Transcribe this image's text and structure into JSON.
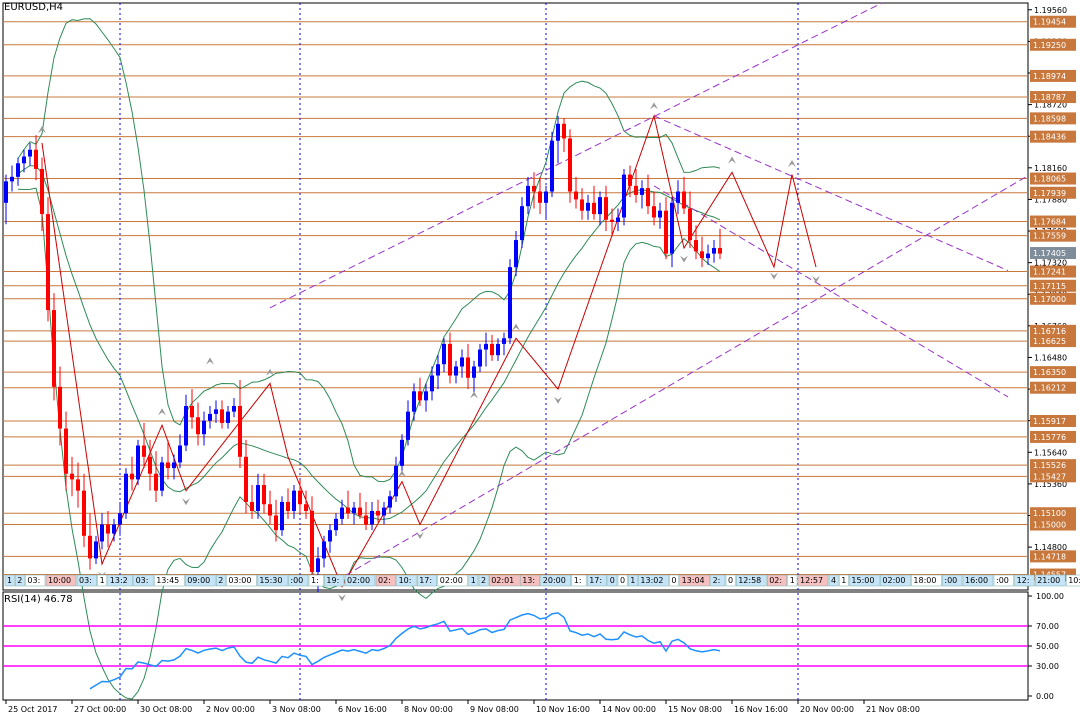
{
  "chart_data": {
    "type": "candlestick",
    "title": "EURUSD,H4",
    "ylim": [
      1.1442,
      1.1962
    ],
    "price_ticks": [
      "1.19560",
      "1.19280",
      "1.19000",
      "1.18720",
      "1.18440",
      "1.18160",
      "1.17880",
      "1.17600",
      "1.17320",
      "1.17040",
      "1.16760",
      "1.16480",
      "1.16200",
      "1.15920",
      "1.15640",
      "1.15360",
      "1.15080",
      "1.14800",
      "1.14520"
    ],
    "levels": [
      1.19454,
      1.1925,
      1.18974,
      1.18787,
      1.18598,
      1.18436,
      1.18065,
      1.17939,
      1.17684,
      1.17559,
      1.17241,
      1.17115,
      1.17,
      1.16716,
      1.16625,
      1.1635,
      1.16212,
      1.15917,
      1.15776,
      1.15526,
      1.15427,
      1.151,
      1.15,
      1.14718,
      1.14557
    ],
    "level_labels": [
      "1.19454",
      "1.19250",
      "1.18974",
      "1.18787",
      "1.18598",
      "1.18436",
      "1.18065",
      "1.17939",
      "1.17684",
      "1.17559",
      "1.17241",
      "1.17115",
      "1.17000",
      "1.16716",
      "1.16625",
      "1.16350",
      "1.16212",
      "1.15917",
      "1.15776",
      "1.15526",
      "1.15427",
      "1.15100",
      "1.15000",
      "1.14718",
      "1.14557"
    ],
    "current_price": "1.17405",
    "level_color": "#c8783c",
    "bull_color": "#0000ff",
    "bear_color": "#ff0000",
    "candles": [
      [
        1.1785,
        1.181,
        1.1766,
        1.1804
      ],
      [
        1.1804,
        1.1818,
        1.1795,
        1.1808
      ],
      [
        1.1808,
        1.1825,
        1.18,
        1.182
      ],
      [
        1.182,
        1.1832,
        1.1812,
        1.1826
      ],
      [
        1.1826,
        1.1838,
        1.1818,
        1.1832
      ],
      [
        1.1832,
        1.1845,
        1.1805,
        1.1815
      ],
      [
        1.1815,
        1.1825,
        1.176,
        1.1775
      ],
      [
        1.1775,
        1.179,
        1.168,
        1.169
      ],
      [
        1.169,
        1.1705,
        1.161,
        1.1622
      ],
      [
        1.1622,
        1.164,
        1.157,
        1.1585
      ],
      [
        1.1585,
        1.16,
        1.153,
        1.1545
      ],
      [
        1.1545,
        1.156,
        1.1525,
        1.154
      ],
      [
        1.154,
        1.1555,
        1.1515,
        1.153
      ],
      [
        1.153,
        1.1545,
        1.148,
        1.149
      ],
      [
        1.149,
        1.151,
        1.146,
        1.147
      ],
      [
        1.147,
        1.149,
        1.1465,
        1.1485
      ],
      [
        1.1485,
        1.151,
        1.1478,
        1.15
      ],
      [
        1.15,
        1.1512,
        1.148,
        1.1492
      ],
      [
        1.1492,
        1.1505,
        1.1485,
        1.15
      ],
      [
        1.15,
        1.152,
        1.149,
        1.151
      ],
      [
        1.151,
        1.155,
        1.1505,
        1.1545
      ],
      [
        1.1545,
        1.156,
        1.153,
        1.154
      ],
      [
        1.154,
        1.1575,
        1.1535,
        1.157
      ],
      [
        1.157,
        1.159,
        1.155,
        1.156
      ],
      [
        1.156,
        1.1575,
        1.153,
        1.1545
      ],
      [
        1.1545,
        1.1565,
        1.152,
        1.153
      ],
      [
        1.153,
        1.156,
        1.1525,
        1.1555
      ],
      [
        1.1555,
        1.1575,
        1.154,
        1.155
      ],
      [
        1.155,
        1.1562,
        1.154,
        1.1555
      ],
      [
        1.1555,
        1.158,
        1.155,
        1.157
      ],
      [
        1.157,
        1.1615,
        1.1565,
        1.1605
      ],
      [
        1.1605,
        1.162,
        1.1585,
        1.1595
      ],
      [
        1.1595,
        1.1608,
        1.157,
        1.158
      ],
      [
        1.158,
        1.16,
        1.157,
        1.1592
      ],
      [
        1.1592,
        1.1605,
        1.1585,
        1.1598
      ],
      [
        1.1598,
        1.161,
        1.159,
        1.1602
      ],
      [
        1.1602,
        1.161,
        1.1585,
        1.159
      ],
      [
        1.159,
        1.1605,
        1.1585,
        1.16
      ],
      [
        1.16,
        1.1612,
        1.1595,
        1.1605
      ],
      [
        1.1605,
        1.1628,
        1.155,
        1.156
      ],
      [
        1.156,
        1.1575,
        1.151,
        1.152
      ],
      [
        1.152,
        1.1535,
        1.1505,
        1.1512
      ],
      [
        1.1512,
        1.1545,
        1.1505,
        1.1535
      ],
      [
        1.1535,
        1.1545,
        1.151,
        1.1518
      ],
      [
        1.1518,
        1.153,
        1.15,
        1.1508
      ],
      [
        1.1508,
        1.1522,
        1.1485,
        1.1495
      ],
      [
        1.1495,
        1.1525,
        1.149,
        1.152
      ],
      [
        1.152,
        1.1532,
        1.1505,
        1.1512
      ],
      [
        1.1512,
        1.1535,
        1.1505,
        1.153
      ],
      [
        1.153,
        1.154,
        1.151,
        1.1518
      ],
      [
        1.1518,
        1.153,
        1.1505,
        1.1512
      ],
      [
        1.1512,
        1.1525,
        1.145,
        1.1458
      ],
      [
        1.1458,
        1.148,
        1.144,
        1.147
      ],
      [
        1.147,
        1.149,
        1.1462,
        1.1485
      ],
      [
        1.1485,
        1.15,
        1.1475,
        1.1495
      ],
      [
        1.1495,
        1.151,
        1.149,
        1.1505
      ],
      [
        1.1505,
        1.1522,
        1.15,
        1.1515
      ],
      [
        1.1515,
        1.153,
        1.1505,
        1.151
      ],
      [
        1.151,
        1.152,
        1.15,
        1.1515
      ],
      [
        1.1515,
        1.1528,
        1.1505,
        1.1508
      ],
      [
        1.1508,
        1.152,
        1.1495,
        1.15
      ],
      [
        1.15,
        1.152,
        1.1495,
        1.1512
      ],
      [
        1.1512,
        1.1522,
        1.1502,
        1.1508
      ],
      [
        1.1508,
        1.152,
        1.15,
        1.1515
      ],
      [
        1.1515,
        1.153,
        1.151,
        1.1525
      ],
      [
        1.1525,
        1.156,
        1.152,
        1.1552
      ],
      [
        1.1552,
        1.158,
        1.1545,
        1.1575
      ],
      [
        1.1575,
        1.161,
        1.157,
        1.16
      ],
      [
        1.16,
        1.1625,
        1.1592,
        1.1618
      ],
      [
        1.1618,
        1.163,
        1.1605,
        1.161
      ],
      [
        1.161,
        1.1625,
        1.16,
        1.1618
      ],
      [
        1.1618,
        1.164,
        1.161,
        1.1632
      ],
      [
        1.1632,
        1.165,
        1.162,
        1.1642
      ],
      [
        1.1642,
        1.1665,
        1.1635,
        1.166
      ],
      [
        1.166,
        1.167,
        1.1625,
        1.1632
      ],
      [
        1.1632,
        1.1645,
        1.1625,
        1.164
      ],
      [
        1.164,
        1.1655,
        1.163,
        1.1648
      ],
      [
        1.1648,
        1.166,
        1.162,
        1.163
      ],
      [
        1.163,
        1.1645,
        1.1615,
        1.164
      ],
      [
        1.164,
        1.166,
        1.1635,
        1.1655
      ],
      [
        1.1655,
        1.167,
        1.164,
        1.166
      ],
      [
        1.166,
        1.1668,
        1.1645,
        1.165
      ],
      [
        1.165,
        1.1665,
        1.1645,
        1.166
      ],
      [
        1.166,
        1.167,
        1.165,
        1.1665
      ],
      [
        1.1665,
        1.1735,
        1.166,
        1.1728
      ],
      [
        1.1728,
        1.176,
        1.172,
        1.1752
      ],
      [
        1.1752,
        1.179,
        1.1745,
        1.1782
      ],
      [
        1.1782,
        1.1808,
        1.1775,
        1.18
      ],
      [
        1.18,
        1.1812,
        1.178,
        1.1795
      ],
      [
        1.1795,
        1.1808,
        1.1775,
        1.1785
      ],
      [
        1.1785,
        1.18,
        1.177,
        1.1795
      ],
      [
        1.1795,
        1.1848,
        1.179,
        1.184
      ],
      [
        1.184,
        1.1862,
        1.182,
        1.1855
      ],
      [
        1.1855,
        1.186,
        1.183,
        1.1842
      ],
      [
        1.1842,
        1.185,
        1.1785,
        1.1795
      ],
      [
        1.1795,
        1.1808,
        1.178,
        1.1788
      ],
      [
        1.1788,
        1.1798,
        1.177,
        1.1778
      ],
      [
        1.1778,
        1.1792,
        1.177,
        1.1785
      ],
      [
        1.1785,
        1.18,
        1.177,
        1.1775
      ],
      [
        1.1775,
        1.1795,
        1.1765,
        1.179
      ],
      [
        1.179,
        1.18,
        1.176,
        1.177
      ],
      [
        1.177,
        1.178,
        1.1755,
        1.1768
      ],
      [
        1.1768,
        1.178,
        1.176,
        1.1772
      ],
      [
        1.1772,
        1.1815,
        1.1765,
        1.181
      ],
      [
        1.181,
        1.1818,
        1.179,
        1.18
      ],
      [
        1.18,
        1.1815,
        1.1785,
        1.1792
      ],
      [
        1.1792,
        1.1805,
        1.178,
        1.1798
      ],
      [
        1.1798,
        1.181,
        1.1775,
        1.1782
      ],
      [
        1.1782,
        1.1795,
        1.1765,
        1.1772
      ],
      [
        1.1772,
        1.1785,
        1.1762,
        1.1778
      ],
      [
        1.1778,
        1.179,
        1.1735,
        1.174
      ],
      [
        1.174,
        1.179,
        1.1728,
        1.1785
      ],
      [
        1.1785,
        1.1805,
        1.1775,
        1.1795
      ],
      [
        1.1795,
        1.1808,
        1.1775,
        1.178
      ],
      [
        1.178,
        1.1795,
        1.1745,
        1.1752
      ],
      [
        1.1752,
        1.1765,
        1.1735,
        1.1742
      ],
      [
        1.1742,
        1.1755,
        1.1728,
        1.1736
      ],
      [
        1.1736,
        1.1748,
        1.173,
        1.174
      ],
      [
        1.174,
        1.1752,
        1.1732,
        1.1745
      ],
      [
        1.1745,
        1.1762,
        1.1735,
        1.174
      ]
    ],
    "x_labels": [
      {
        "i": 0,
        "t": "25 Oct 2017"
      },
      {
        "i": 11,
        "t": "27 Oct 00:00"
      },
      {
        "i": 22,
        "t": "30 Oct 08:00"
      },
      {
        "i": 33,
        "t": "2 Nov 00:00"
      },
      {
        "i": 44,
        "t": "3 Nov 08:00"
      },
      {
        "i": 55,
        "t": "6 Nov 16:00"
      },
      {
        "i": 66,
        "t": "8 Nov 00:00"
      },
      {
        "i": 77,
        "t": "9 Nov 08:00"
      },
      {
        "i": 88,
        "t": "10 Nov 16:00"
      },
      {
        "i": 99,
        "t": "14 Nov 00:00"
      },
      {
        "i": 110,
        "t": "15 Nov 08:00"
      },
      {
        "i": 121,
        "t": "16 Nov 16:00"
      },
      {
        "i": 132,
        "t": "20 Nov 00:00"
      },
      {
        "i": 143,
        "t": "21 Nov 08:00"
      }
    ],
    "vlines": [
      19,
      49,
      90,
      132
    ],
    "rsi": {
      "title": "RSI(14) 46.78",
      "period": 14,
      "ylim": [
        0,
        100
      ],
      "levels": [
        70,
        50,
        30
      ],
      "ticks": [
        "100.00",
        "70.00",
        "50.00",
        "30.00",
        "0.00"
      ],
      "level_color": "#ff00ff",
      "line_color": "#1e90ff"
    },
    "time_strip": [
      "1",
      "2",
      "03:",
      "10:00",
      "03:",
      "1",
      "13:2",
      "03:",
      "13:45",
      "09:00",
      "2",
      "03:00",
      "15:30",
      ":00",
      "1:",
      "19:",
      "02:00",
      "02:",
      "10:",
      "17:",
      "02:00",
      "1",
      "2",
      "02:01",
      "13:",
      "20:00",
      "1:",
      "17:",
      "0",
      "0",
      "1",
      "13:02",
      "0",
      "13:04",
      "2:",
      "0",
      "12:58",
      "02:",
      "1",
      "12:57",
      "4",
      "1",
      "15:00",
      "02:00",
      "18:00",
      ":00",
      "16:00",
      ":00",
      "12:",
      "21:00",
      "10:3",
      "20:15",
      "1",
      "1",
      "20:15"
    ]
  }
}
